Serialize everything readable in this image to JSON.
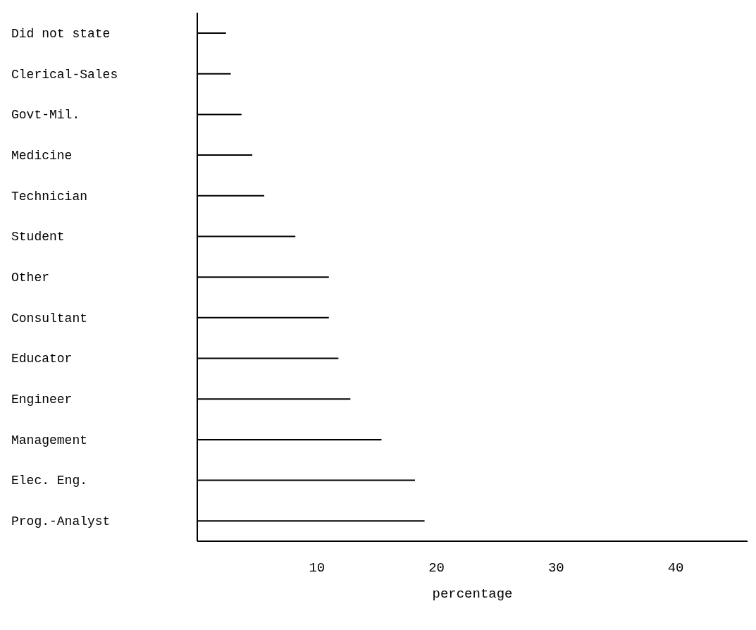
{
  "chart_data": {
    "type": "bar",
    "orientation": "horizontal",
    "xlabel": "percentage",
    "categories": [
      "Did not state",
      "Clerical-Sales",
      "Govt-Mil.",
      "Medicine",
      "Technician",
      "Student",
      "Other",
      "Consultant",
      "Educator",
      "Engineer",
      "Management",
      "Elec. Eng.",
      "Prog.-Analyst"
    ],
    "values": [
      2.4,
      2.8,
      3.7,
      4.6,
      5.6,
      8.2,
      11,
      11,
      11.8,
      12.8,
      15.4,
      18.2,
      19
    ],
    "color": "#000000",
    "xlim": [
      0,
      46
    ],
    "xticks": [
      10,
      20,
      30,
      40
    ],
    "grid": false
  }
}
